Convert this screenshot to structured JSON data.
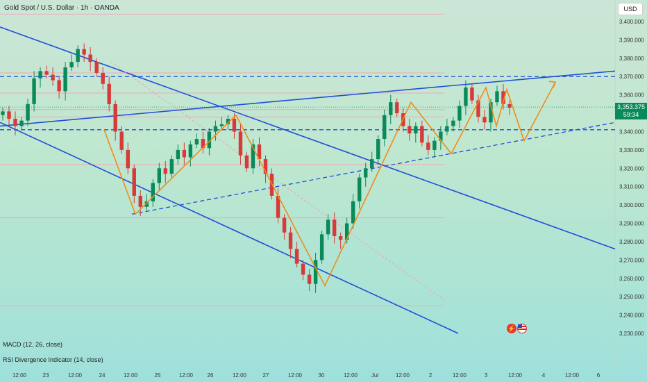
{
  "header": {
    "title": "Gold Spot / U.S. Dollar · 1h · OANDA",
    "currency": "USD"
  },
  "price_tag": {
    "price": "3,353.375",
    "countdown": "59:34"
  },
  "indicators": [
    {
      "label": "MACD (12, 26, close)"
    },
    {
      "label": "RSI Divergence Indicator (14, close)"
    }
  ],
  "colors": {
    "up": "#0a8a5a",
    "down": "#d63a3a",
    "trend_line": "#1f4fd8",
    "pattern": "#f08c1a",
    "level": "#f2a6b4"
  },
  "chart_data": {
    "type": "candlestick",
    "title": "Gold Spot / U.S. Dollar · 1h · OANDA",
    "y_axis": {
      "ticks": [
        3230,
        3240,
        3250,
        3260,
        3270,
        3280,
        3290,
        3300,
        3310,
        3320,
        3330,
        3340,
        3350,
        3360,
        3370,
        3380,
        3390,
        3400
      ],
      "tick_labels": [
        "3,230.000",
        "3,240.000",
        "3,250.000",
        "3,260.000",
        "3,270.000",
        "3,280.000",
        "3,290.000",
        "3,300.000",
        "3,310.000",
        "3,320.000",
        "3,330.000",
        "3,340.000",
        "3,350.000",
        "3,360.000",
        "3,370.000",
        "3,380.000",
        "3,390.000",
        "3,400.000"
      ],
      "range": [
        3228,
        3405
      ]
    },
    "x_axis": {
      "tick_labels": [
        "12:00",
        "23",
        "12:00",
        "24",
        "12:00",
        "25",
        "12:00",
        "26",
        "12:00",
        "27",
        "12:00",
        "30",
        "12:00",
        "Jul",
        "12:00",
        "2",
        "12:00",
        "3",
        "12:00",
        "4",
        "12:00",
        "6"
      ]
    },
    "last_price": 3353.375,
    "close_path": [
      3351,
      3347,
      3343,
      3346,
      3355,
      3369,
      3373,
      3371,
      3368,
      3362,
      3375,
      3378,
      3385,
      3382,
      3378,
      3372,
      3366,
      3355,
      3340,
      3330,
      3320,
      3305,
      3299,
      3302,
      3312,
      3320,
      3317,
      3325,
      3330,
      3326,
      3333,
      3336,
      3331,
      3340,
      3343,
      3344,
      3347,
      3340,
      3327,
      3320,
      3333,
      3325,
      3317,
      3305,
      3293,
      3285,
      3276,
      3268,
      3262,
      3257,
      3270,
      3284,
      3292,
      3283,
      3281,
      3290,
      3302,
      3315,
      3320,
      3325,
      3336,
      3349,
      3356,
      3350,
      3343,
      3339,
      3343,
      3334,
      3330,
      3335,
      3340,
      3343,
      3346,
      3354,
      3364,
      3357,
      3348,
      3345,
      3356,
      3362,
      3355,
      3353
    ],
    "levels": [
      3404,
      3372,
      3361,
      3352,
      3348,
      3322,
      3293,
      3245
    ],
    "dashed_levels": [
      3370,
      3341
    ],
    "pattern_zigzag": [
      3341,
      3295,
      3349,
      3256,
      3356,
      3328,
      3364,
      3343,
      3363,
      3335,
      3367
    ]
  }
}
